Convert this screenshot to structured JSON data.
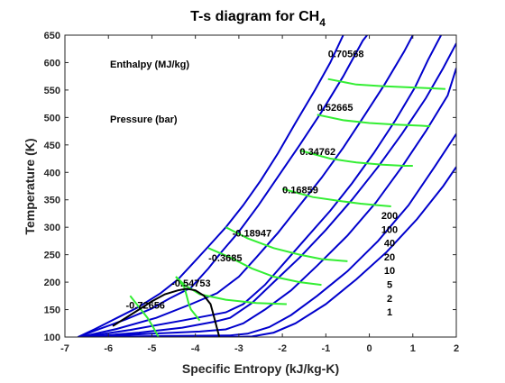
{
  "chart_data": {
    "type": "line",
    "title": "T-s diagram for CH",
    "title_subscript": "4",
    "xlabel": "Specific Entropy (kJ/kg-K)",
    "ylabel": "Temperature (K)",
    "xlim": [
      -7,
      2
    ],
    "ylim": [
      100,
      650
    ],
    "xticks": [
      -7,
      -6,
      -5,
      -4,
      -3,
      -2,
      -1,
      0,
      1,
      2
    ],
    "yticks": [
      100,
      150,
      200,
      250,
      300,
      350,
      400,
      450,
      500,
      550,
      600,
      650
    ],
    "grid": false,
    "colors": {
      "isobar": "#0000CC",
      "isenthalp": "#33EE33",
      "saturation_dome": "#000000",
      "axes": "#262626"
    },
    "annotations": {
      "enthalpy_label": "Enthalpy (MJ/kg)",
      "pressure_label": "Pressure (bar)"
    },
    "isobars": [
      {
        "pressure": "200",
        "points": [
          [
            -6.7,
            100
          ],
          [
            -6.3,
            115
          ],
          [
            -5.8,
            135
          ],
          [
            -5.3,
            155
          ],
          [
            -4.8,
            180
          ],
          [
            -4.4,
            205
          ],
          [
            -4.05,
            235
          ],
          [
            -3.7,
            265
          ],
          [
            -3.3,
            300
          ],
          [
            -2.9,
            340
          ],
          [
            -2.5,
            385
          ],
          [
            -2.1,
            435
          ],
          [
            -1.7,
            490
          ],
          [
            -1.25,
            550
          ],
          [
            -0.9,
            600
          ],
          [
            -0.6,
            650
          ]
        ]
      },
      {
        "pressure": "100",
        "points": [
          [
            -6.7,
            100
          ],
          [
            -6.2,
            115
          ],
          [
            -5.6,
            132
          ],
          [
            -5.0,
            152
          ],
          [
            -4.6,
            170
          ],
          [
            -4.1,
            190
          ],
          [
            -3.7,
            225
          ],
          [
            -3.4,
            255
          ],
          [
            -3.0,
            292
          ],
          [
            -2.55,
            340
          ],
          [
            -2.1,
            392
          ],
          [
            -1.6,
            450
          ],
          [
            -1.1,
            510
          ],
          [
            -0.6,
            575
          ],
          [
            -0.15,
            640
          ],
          [
            -0.05,
            650
          ]
        ]
      },
      {
        "pressure": "40",
        "points": [
          [
            -6.65,
            100
          ],
          [
            -5.8,
            115
          ],
          [
            -4.9,
            135
          ],
          [
            -4.1,
            160
          ],
          [
            -3.5,
            180
          ],
          [
            -3.0,
            210
          ],
          [
            -2.6,
            245
          ],
          [
            -2.1,
            290
          ],
          [
            -1.6,
            340
          ],
          [
            -1.1,
            390
          ],
          [
            -0.6,
            445
          ],
          [
            -0.1,
            505
          ],
          [
            0.35,
            560
          ],
          [
            0.8,
            620
          ],
          [
            1.0,
            650
          ]
        ]
      },
      {
        "pressure": "20",
        "points": [
          [
            -6.6,
            100
          ],
          [
            -5.5,
            113
          ],
          [
            -4.3,
            130
          ],
          [
            -3.3,
            145
          ],
          [
            -2.9,
            160
          ],
          [
            -2.4,
            195
          ],
          [
            -1.9,
            240
          ],
          [
            -1.4,
            285
          ],
          [
            -0.9,
            330
          ],
          [
            -0.4,
            380
          ],
          [
            0.1,
            435
          ],
          [
            0.6,
            495
          ],
          [
            1.05,
            555
          ],
          [
            1.35,
            605
          ],
          [
            1.55,
            635
          ],
          [
            1.65,
            650
          ]
        ]
      },
      {
        "pressure": "10",
        "points": [
          [
            -6.55,
            100
          ],
          [
            -5.3,
            108
          ],
          [
            -4.3,
            117
          ],
          [
            -3.55,
            128
          ],
          [
            -3.2,
            135
          ],
          [
            -2.7,
            162
          ],
          [
            -2.2,
            200
          ],
          [
            -1.6,
            245
          ],
          [
            -1.0,
            295
          ],
          [
            -0.4,
            350
          ],
          [
            0.2,
            410
          ],
          [
            0.75,
            470
          ],
          [
            1.3,
            535
          ],
          [
            1.7,
            590
          ],
          [
            2.0,
            635
          ]
        ]
      },
      {
        "pressure": "5",
        "points": [
          [
            -6.5,
            100
          ],
          [
            -5.0,
            106
          ],
          [
            -3.9,
            110
          ],
          [
            -3.3,
            114
          ],
          [
            -2.9,
            125
          ],
          [
            -2.4,
            150
          ],
          [
            -1.8,
            185
          ],
          [
            -1.2,
            230
          ],
          [
            -0.5,
            285
          ],
          [
            0.15,
            345
          ],
          [
            0.75,
            410
          ],
          [
            1.3,
            475
          ],
          [
            1.8,
            540
          ],
          [
            2.1,
            590
          ]
        ]
      },
      {
        "pressure": "2",
        "points": [
          [
            -6.45,
            100
          ],
          [
            -4.5,
            102
          ],
          [
            -3.2,
            103
          ],
          [
            -2.8,
            106
          ],
          [
            -2.3,
            118
          ],
          [
            -1.8,
            140
          ],
          [
            -1.2,
            175
          ],
          [
            -0.5,
            220
          ],
          [
            0.2,
            275
          ],
          [
            0.9,
            340
          ],
          [
            1.5,
            410
          ],
          [
            2.0,
            470
          ]
        ]
      },
      {
        "pressure": "1",
        "points": [
          [
            -6.4,
            100
          ],
          [
            -4.5,
            100
          ],
          [
            -3.1,
            100
          ],
          [
            -2.7,
            101
          ],
          [
            -2.2,
            108
          ],
          [
            -1.7,
            125
          ],
          [
            -1.0,
            160
          ],
          [
            -0.3,
            205
          ],
          [
            0.4,
            255
          ],
          [
            1.1,
            315
          ],
          [
            1.7,
            375
          ],
          [
            2.0,
            410
          ]
        ]
      }
    ],
    "isenthalps": [
      {
        "h": "0.70568",
        "label_at": [
          -0.95,
          610
        ],
        "points": [
          [
            -0.95,
            570
          ],
          [
            -0.3,
            560
          ],
          [
            0.3,
            557
          ],
          [
            0.9,
            555
          ],
          [
            1.5,
            553
          ],
          [
            1.75,
            552
          ]
        ]
      },
      {
        "h": "0.52665",
        "label_at": [
          -1.2,
          512
        ],
        "points": [
          [
            -1.2,
            505
          ],
          [
            -0.6,
            495
          ],
          [
            0.0,
            490
          ],
          [
            0.6,
            487
          ],
          [
            1.2,
            485
          ],
          [
            1.4,
            484
          ]
        ]
      },
      {
        "h": "0.34762",
        "label_at": [
          -1.6,
          432
        ],
        "points": [
          [
            -1.6,
            440
          ],
          [
            -0.9,
            425
          ],
          [
            -0.3,
            418
          ],
          [
            0.3,
            414
          ],
          [
            0.8,
            412
          ],
          [
            1.0,
            412
          ]
        ]
      },
      {
        "h": "0.16859",
        "label_at": [
          -2.0,
          362
        ],
        "points": [
          [
            -2.0,
            370
          ],
          [
            -1.3,
            355
          ],
          [
            -0.7,
            348
          ],
          [
            -0.2,
            343
          ],
          [
            0.2,
            340
          ],
          [
            0.5,
            338
          ]
        ]
      },
      {
        "h": "-0.18947",
        "label_at": [
          -3.15,
          283
        ],
        "points": [
          [
            -3.3,
            300
          ],
          [
            -2.8,
            280
          ],
          [
            -2.2,
            262
          ],
          [
            -1.6,
            250
          ],
          [
            -1.1,
            242
          ],
          [
            -0.5,
            238
          ]
        ]
      },
      {
        "h": "-0.3685",
        "label_at": [
          -3.7,
          238
        ],
        "points": [
          [
            -3.7,
            262
          ],
          [
            -3.2,
            245
          ],
          [
            -2.7,
            225
          ],
          [
            -2.2,
            210
          ],
          [
            -1.6,
            200
          ],
          [
            -1.1,
            195
          ]
        ]
      },
      {
        "h": "-0.54753",
        "label_at": [
          -4.55,
          192
        ],
        "points": [
          [
            -4.45,
            210
          ],
          [
            -4.25,
            195
          ],
          [
            -3.9,
            178
          ],
          [
            -3.3,
            168
          ],
          [
            -2.6,
            162
          ],
          [
            -1.9,
            160
          ]
        ]
      },
      {
        "h": "-0.72656",
        "label_at": [
          -5.6,
          152
        ],
        "points": [
          [
            -5.5,
            175
          ],
          [
            -5.35,
            160
          ],
          [
            -5.1,
            135
          ],
          [
            -4.95,
            115
          ],
          [
            -4.85,
            100
          ]
        ]
      },
      {
        "h": "",
        "points": [
          [
            -4.45,
            210
          ],
          [
            -4.25,
            190
          ],
          [
            -4.2,
            175
          ],
          [
            -4.15,
            160
          ],
          [
            -4.1,
            150
          ],
          [
            -4.0,
            140
          ],
          [
            -3.9,
            130
          ]
        ]
      }
    ],
    "saturation_dome": [
      [
        -5.9,
        120
      ],
      [
        -5.4,
        145
      ],
      [
        -5.0,
        165
      ],
      [
        -4.7,
        178
      ],
      [
        -4.4,
        185
      ],
      [
        -4.2,
        188
      ],
      [
        -4.0,
        185
      ],
      [
        -3.8,
        175
      ],
      [
        -3.65,
        160
      ],
      [
        -3.6,
        145
      ],
      [
        -3.55,
        130
      ],
      [
        -3.5,
        115
      ],
      [
        -3.45,
        100
      ]
    ],
    "label_series": {
      "enthalpy_labels": [
        "0.70568",
        "0.52665",
        "0.34762",
        "0.16859",
        "-0.18947",
        "-0.3685",
        "-0.54753",
        "-0.72656"
      ],
      "pressure_labels": [
        "200",
        "100",
        "40",
        "20",
        "10",
        "5",
        "2",
        "1"
      ]
    }
  }
}
